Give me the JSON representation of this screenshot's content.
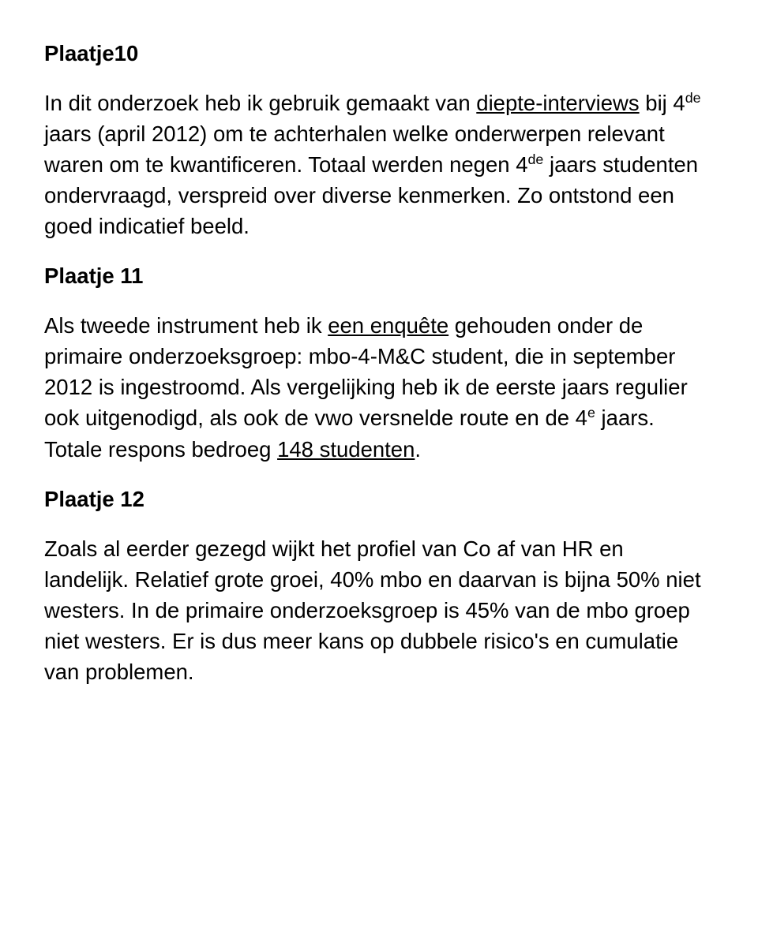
{
  "s1": {
    "heading": "Plaatje10",
    "p1a": "In dit onderzoek heb ik gebruik gemaakt van ",
    "p1u1": "diepte-interviews",
    "p1b": " bij 4",
    "p1sup": "de",
    "p1c": " jaars (april 2012) om te achterhalen welke onderwerpen relevant waren om te kwantificeren. Totaal werden negen 4",
    "p1sup2": "de",
    "p1d": " jaars studenten ondervraagd, verspreid over  diverse kenmerken. Zo ontstond een goed indicatief beeld."
  },
  "s2": {
    "heading": "Plaatje 11",
    "p2a": "Als tweede instrument heb ik ",
    "p2u": "een enquête",
    "p2b": " gehouden onder de primaire onderzoeksgroep: mbo-4-M&C student, die in september 2012 is ingestroomd. Als vergelijking heb ik de eerste jaars regulier ook uitgenodigd, als ook de vwo versnelde route en de 4",
    "p2sup": "e",
    "p2c": " jaars. Totale respons bedroeg ",
    "p2u2": "148 studenten",
    "p2d": "."
  },
  "s3": {
    "heading": "Plaatje 12",
    "p3": "Zoals al eerder gezegd wijkt het profiel van Co af van HR en landelijk. Relatief grote groei, 40% mbo en daarvan is bijna 50% niet westers. In de primaire onderzoeksgroep  is 45% van de mbo groep niet westers.  Er is dus meer kans op dubbele risico's en cumulatie van problemen."
  }
}
